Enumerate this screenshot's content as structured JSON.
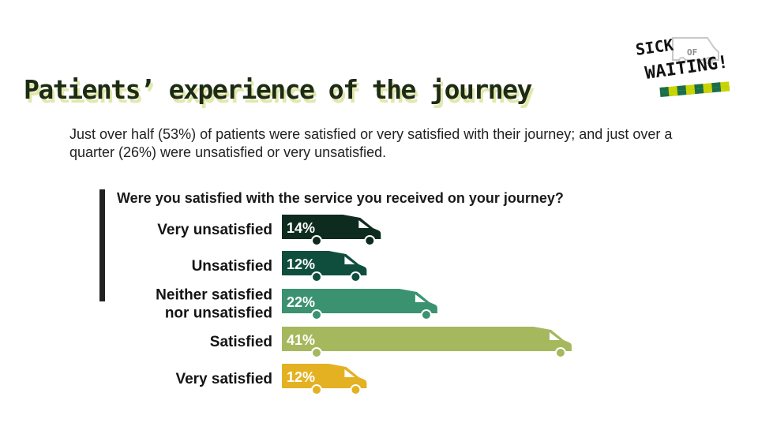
{
  "header": {
    "title": "Patients’ experience of the journey",
    "summary": "Just over half (53%) of patients were satisfied or very satisfied with their journey; and just over a quarter (26%) were unsatisfied or very unsatisfied."
  },
  "logo": {
    "line1": "SICK",
    "line2": "OF",
    "line3": "WAITING!",
    "icon": "ambulance-icon"
  },
  "chart_data": {
    "type": "bar",
    "orientation": "horizontal",
    "title": "Were you satisfied with the service you received on your journey?",
    "categories": [
      [
        "Very unsatisfied"
      ],
      [
        "Unsatisfied"
      ],
      [
        "Neither satisfied",
        "nor unsatisfied"
      ],
      [
        "Satisfied"
      ],
      [
        "Very satisfied"
      ]
    ],
    "values": [
      14,
      12,
      22,
      41,
      12
    ],
    "labels": [
      "14%",
      "12%",
      "22%",
      "41%",
      "12%"
    ],
    "unit": "%",
    "colors": [
      "#0e2b1f",
      "#0f4e3d",
      "#3a9271",
      "#a6b85e",
      "#e3b122"
    ],
    "mark": "van-icon"
  }
}
